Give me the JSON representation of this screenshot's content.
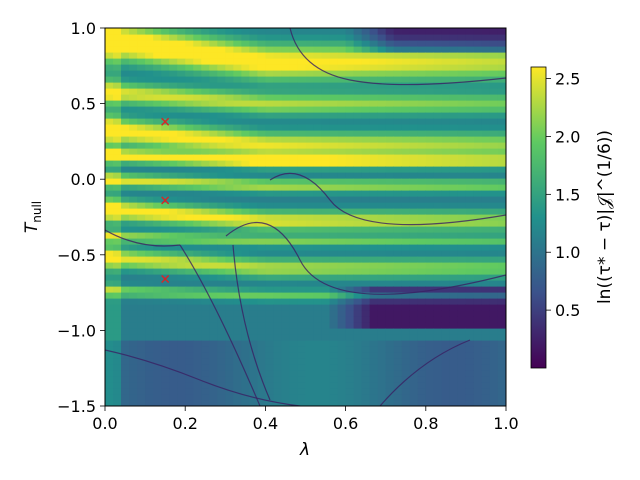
{
  "chart_data": {
    "type": "heatmap",
    "title": "",
    "xlabel": "λ",
    "ylabel": "T",
    "ylabel_sub": "null",
    "xlim": [
      0.0,
      1.0
    ],
    "ylim": [
      -1.5,
      1.0
    ],
    "x_ticks": [
      0.0,
      0.2,
      0.4,
      0.6,
      0.8,
      1.0
    ],
    "x_tick_labels": [
      "0.0",
      "0.2",
      "0.4",
      "0.6",
      "0.8",
      "1.0"
    ],
    "y_ticks": [
      1.0,
      0.5,
      0.0,
      -0.5,
      -1.0,
      -1.5
    ],
    "y_tick_labels": [
      "1.0",
      "0.5",
      "0.0",
      "−0.5",
      "−1.0",
      "−1.5"
    ],
    "colormap": "viridis",
    "colorbar": {
      "label": "ln((τ* − τ)|𝒥|^(1/6))",
      "range": [
        0.0,
        2.6
      ],
      "ticks": [
        0.5,
        1.0,
        1.5,
        2.0,
        2.5
      ],
      "tick_labels": [
        "0.5",
        "1.0",
        "1.5",
        "2.0",
        "2.5"
      ]
    },
    "markers": {
      "symbol": "x",
      "color": "#d62728",
      "points": [
        {
          "x": 0.15,
          "y": 0.38
        },
        {
          "x": 0.15,
          "y": -0.14
        },
        {
          "x": 0.15,
          "y": -0.66
        }
      ]
    },
    "bright_bands": [
      {
        "y_start": 1.0,
        "y_end": 0.7,
        "strength": 0.75
      },
      {
        "y_start": 0.62,
        "y_end": 0.46,
        "strength": 0.55
      },
      {
        "y_start": 0.38,
        "y_end": 0.18,
        "strength": 0.65
      },
      {
        "y_start": 0.18,
        "y_end": 0.1,
        "strength": 0.7
      },
      {
        "y_start": 0.02,
        "y_end": -0.06,
        "strength": 0.55
      },
      {
        "y_start": -0.16,
        "y_end": -0.31,
        "strength": 0.65
      },
      {
        "y_start": -0.36,
        "y_end": -0.42,
        "strength": 0.45
      },
      {
        "y_start": -0.48,
        "y_end": -0.62,
        "strength": 0.55
      },
      {
        "y_start": -0.72,
        "y_end": -0.78,
        "strength": 0.4
      }
    ],
    "dark_regions": [
      {
        "x_range": [
          0.6,
          1.0
        ],
        "y_range": [
          0.85,
          1.0
        ]
      },
      {
        "x_range": [
          0.55,
          1.0
        ],
        "y_range": [
          -1.0,
          -0.72
        ]
      }
    ]
  }
}
